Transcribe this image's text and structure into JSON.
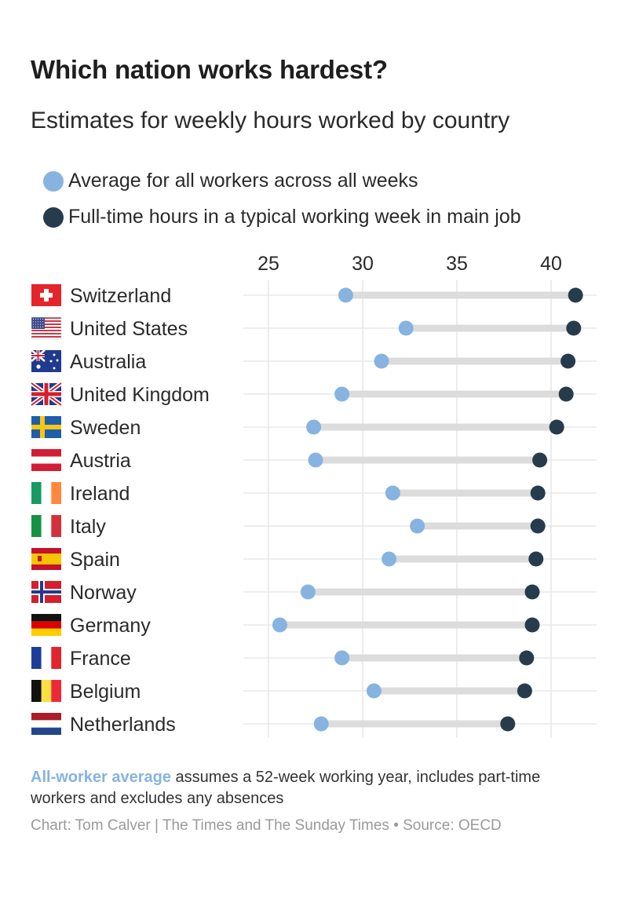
{
  "chart_data": {
    "type": "dumbbell",
    "title": "Which nation works hardest?",
    "subtitle": "Estimates for weekly hours worked by country",
    "xlim": [
      23.5,
      42.5
    ],
    "xticks": [
      25,
      30,
      35,
      40
    ],
    "grid": true,
    "legend_position": "top-left",
    "series": [
      {
        "name": "Average for all workers across all weeks",
        "color": "#86b3e0"
      },
      {
        "name": "Full-time hours in a typical working week in main job",
        "color": "#263c4c"
      }
    ],
    "categories": [
      "Switzerland",
      "United States",
      "Australia",
      "United Kingdom",
      "Sweden",
      "Austria",
      "Ireland",
      "Italy",
      "Spain",
      "Norway",
      "Germany",
      "France",
      "Belgium",
      "Netherlands"
    ],
    "average_all_workers": [
      29.1,
      32.3,
      31.0,
      28.9,
      27.4,
      27.5,
      31.6,
      32.9,
      31.4,
      27.1,
      25.6,
      28.9,
      30.6,
      27.8
    ],
    "full_time_typical_week": [
      41.3,
      41.2,
      40.9,
      40.8,
      40.3,
      39.4,
      39.3,
      39.3,
      39.2,
      39.0,
      39.0,
      38.7,
      38.6,
      37.7
    ]
  },
  "flags": [
    "switzerland-flag",
    "united-states-flag",
    "australia-flag",
    "united-kingdom-flag",
    "sweden-flag",
    "austria-flag",
    "ireland-flag",
    "italy-flag",
    "spain-flag",
    "norway-flag",
    "germany-flag",
    "france-flag",
    "belgium-flag",
    "netherlands-flag"
  ],
  "footer": {
    "note_highlight": "All-worker average",
    "note_text": " assumes a 52-week working year, includes part-time workers and excludes any absences",
    "credit": "Chart: Tom Calver | The Times and The Sunday Times • Source: OECD"
  }
}
